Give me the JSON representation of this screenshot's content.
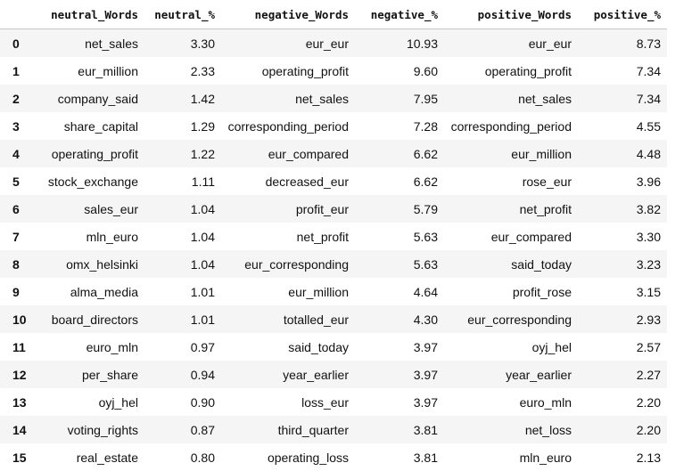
{
  "columns": [
    "neutral_Words",
    "neutral_%",
    "negative_Words",
    "negative_%",
    "positive_Words",
    "positive_%"
  ],
  "rows": [
    {
      "index": "0",
      "cells": [
        "net_sales",
        "3.30",
        "eur_eur",
        "10.93",
        "eur_eur",
        "8.73"
      ]
    },
    {
      "index": "1",
      "cells": [
        "eur_million",
        "2.33",
        "operating_profit",
        "9.60",
        "operating_profit",
        "7.34"
      ]
    },
    {
      "index": "2",
      "cells": [
        "company_said",
        "1.42",
        "net_sales",
        "7.95",
        "net_sales",
        "7.34"
      ]
    },
    {
      "index": "3",
      "cells": [
        "share_capital",
        "1.29",
        "corresponding_period",
        "7.28",
        "corresponding_period",
        "4.55"
      ]
    },
    {
      "index": "4",
      "cells": [
        "operating_profit",
        "1.22",
        "eur_compared",
        "6.62",
        "eur_million",
        "4.48"
      ]
    },
    {
      "index": "5",
      "cells": [
        "stock_exchange",
        "1.11",
        "decreased_eur",
        "6.62",
        "rose_eur",
        "3.96"
      ]
    },
    {
      "index": "6",
      "cells": [
        "sales_eur",
        "1.04",
        "profit_eur",
        "5.79",
        "net_profit",
        "3.82"
      ]
    },
    {
      "index": "7",
      "cells": [
        "mln_euro",
        "1.04",
        "net_profit",
        "5.63",
        "eur_compared",
        "3.30"
      ]
    },
    {
      "index": "8",
      "cells": [
        "omx_helsinki",
        "1.04",
        "eur_corresponding",
        "5.63",
        "said_today",
        "3.23"
      ]
    },
    {
      "index": "9",
      "cells": [
        "alma_media",
        "1.01",
        "eur_million",
        "4.64",
        "profit_rose",
        "3.15"
      ]
    },
    {
      "index": "10",
      "cells": [
        "board_directors",
        "1.01",
        "totalled_eur",
        "4.30",
        "eur_corresponding",
        "2.93"
      ]
    },
    {
      "index": "11",
      "cells": [
        "euro_mln",
        "0.97",
        "said_today",
        "3.97",
        "oyj_hel",
        "2.57"
      ]
    },
    {
      "index": "12",
      "cells": [
        "per_share",
        "0.94",
        "year_earlier",
        "3.97",
        "year_earlier",
        "2.27"
      ]
    },
    {
      "index": "13",
      "cells": [
        "oyj_hel",
        "0.90",
        "loss_eur",
        "3.97",
        "euro_mln",
        "2.20"
      ]
    },
    {
      "index": "14",
      "cells": [
        "voting_rights",
        "0.87",
        "third_quarter",
        "3.81",
        "net_loss",
        "2.20"
      ]
    },
    {
      "index": "15",
      "cells": [
        "real_estate",
        "0.80",
        "operating_loss",
        "3.81",
        "mln_euro",
        "2.13"
      ]
    }
  ]
}
